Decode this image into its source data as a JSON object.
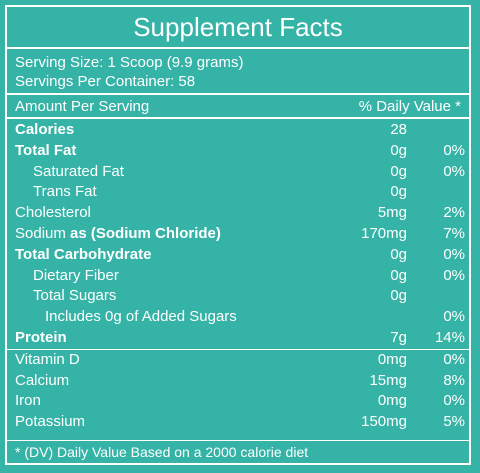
{
  "title": "Supplement Facts",
  "serving_size": "Serving Size: 1 Scoop (9.9 grams)",
  "servings_per_container": "Servings Per Container: 58",
  "header": {
    "left": "Amount Per Serving",
    "right": "% Daily Value *"
  },
  "nutrients": [
    {
      "label": "Calories",
      "amount": "28",
      "dv": ""
    },
    {
      "label": "Total Fat",
      "amount": "0g",
      "dv": "0%"
    },
    {
      "label": "Saturated Fat",
      "amount": "0g",
      "dv": "0%"
    },
    {
      "label": "Trans Fat",
      "amount": "0g",
      "dv": ""
    },
    {
      "label": "Cholesterol",
      "amount": "5mg",
      "dv": "2%"
    },
    {
      "label_a": "Sodium",
      "label_b": "as (Sodium Chloride)",
      "amount": "170mg",
      "dv": "7%"
    },
    {
      "label": "Total Carbohydrate",
      "amount": "0g",
      "dv": "0%"
    },
    {
      "label": "Dietary Fiber",
      "amount": "0g",
      "dv": "0%"
    },
    {
      "label": "Total Sugars",
      "amount": "0g",
      "dv": ""
    },
    {
      "label": "Includes 0g of Added Sugars",
      "amount": "",
      "dv": "0%"
    },
    {
      "label": "Protein",
      "amount": "7g",
      "dv": "14%"
    }
  ],
  "vitamins": [
    {
      "label": "Vitamin D",
      "amount": "0mg",
      "dv": "0%"
    },
    {
      "label": "Calcium",
      "amount": "15mg",
      "dv": "8%"
    },
    {
      "label": "Iron",
      "amount": "0mg",
      "dv": "0%"
    },
    {
      "label": "Potassium",
      "amount": "150mg",
      "dv": "5%"
    }
  ],
  "footnote": "* (DV) Daily Value Based on a 2000 calorie diet",
  "colors": {
    "background": "#34b3a6",
    "text": "#ffffff"
  }
}
